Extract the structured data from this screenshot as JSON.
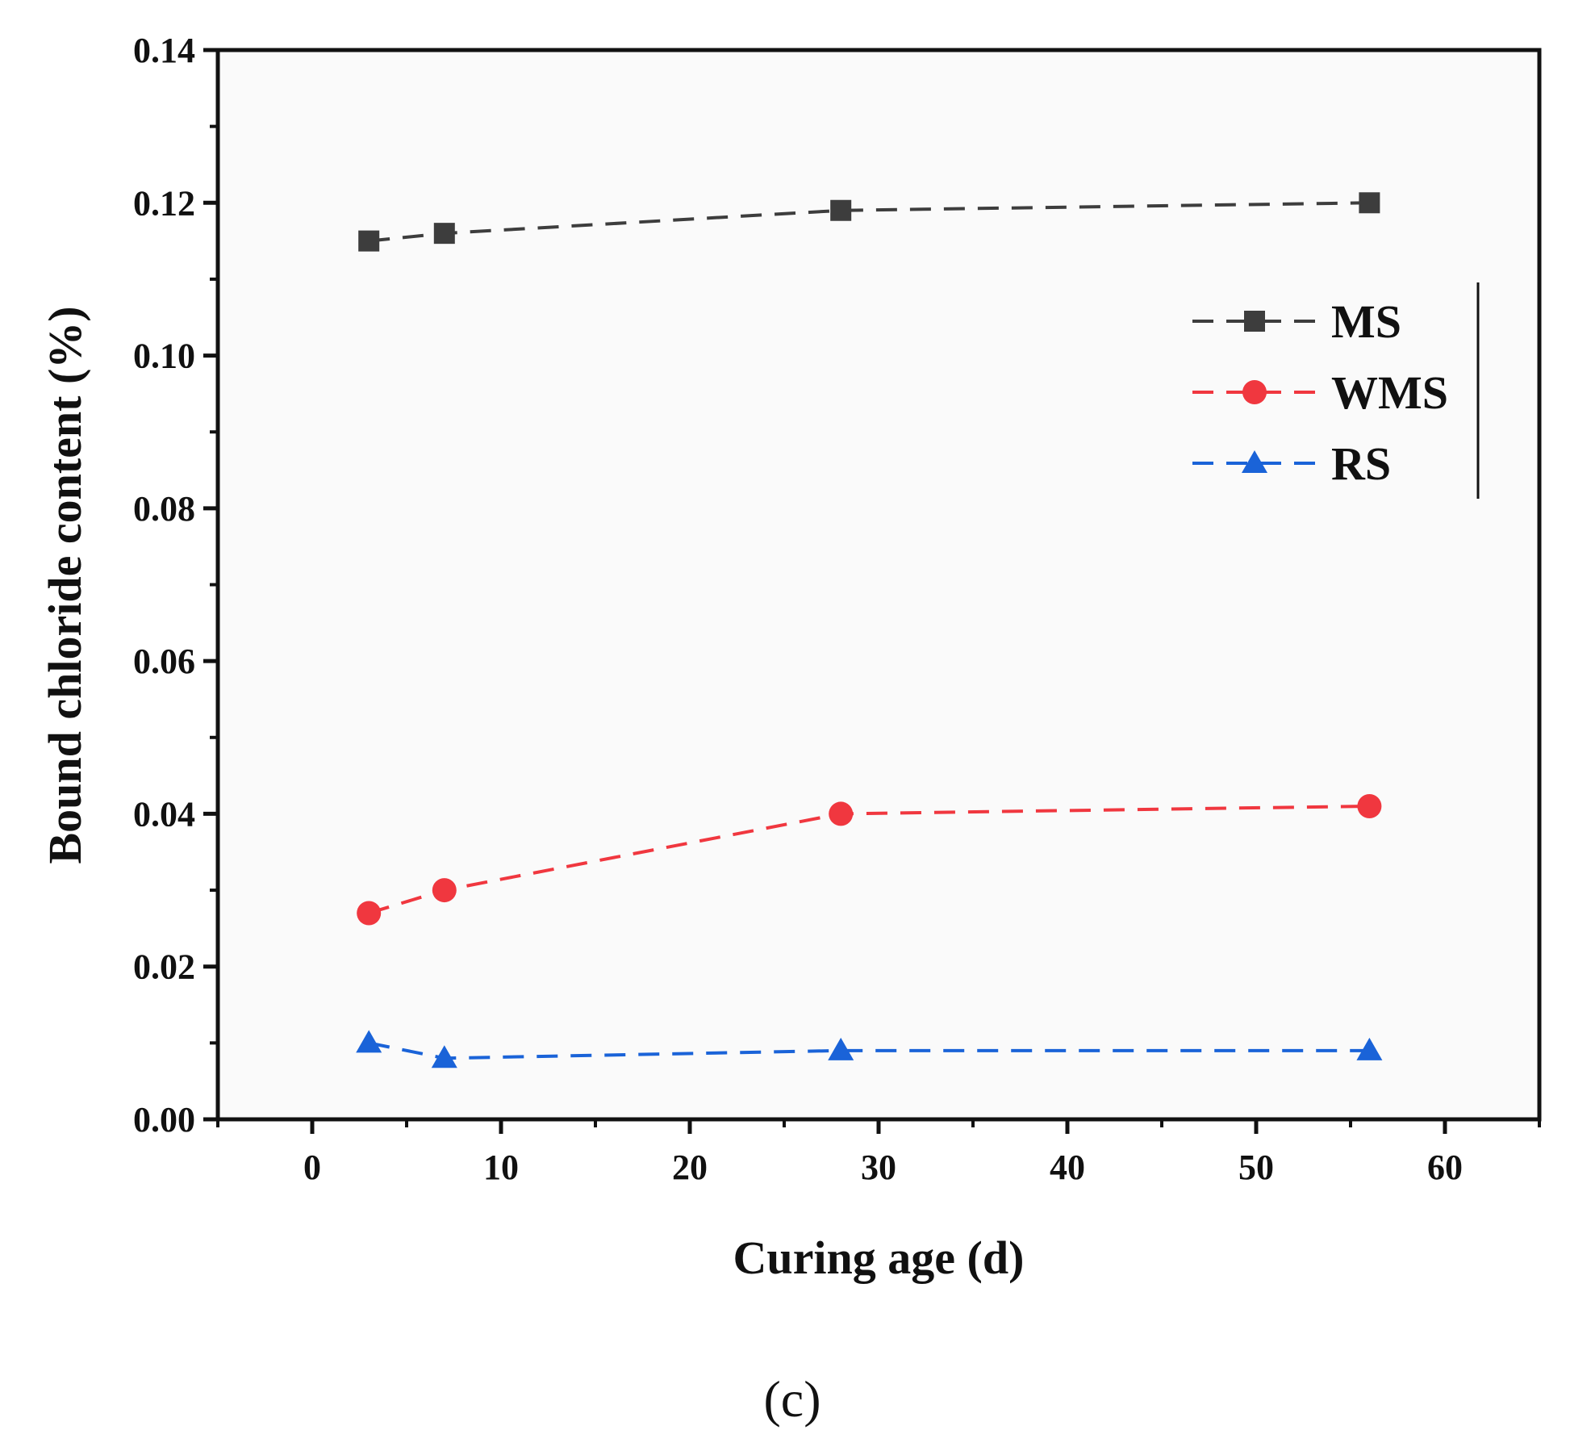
{
  "chart_data": {
    "type": "line",
    "xlabel": "Curing age (d)",
    "ylabel": "Bound chloride content (%)",
    "xlim": [
      -5,
      65
    ],
    "ylim": [
      0,
      0.14
    ],
    "xticks": [
      0,
      10,
      20,
      30,
      40,
      50,
      60
    ],
    "xtick_labels": [
      "0",
      "10",
      "20",
      "30",
      "40",
      "50",
      "60"
    ],
    "yticks": [
      0,
      0.02,
      0.04,
      0.06,
      0.08,
      0.1,
      0.12,
      0.14
    ],
    "ytick_labels": [
      "0.00",
      "0.02",
      "0.04",
      "0.06",
      "0.08",
      "0.10",
      "0.12",
      "0.14"
    ],
    "legend_position": "top-right",
    "grid": false,
    "series": [
      {
        "name": "MS",
        "color": "#3d3d3d",
        "marker": "square",
        "x": [
          3,
          7,
          28,
          56
        ],
        "y": [
          0.115,
          0.116,
          0.119,
          0.12
        ]
      },
      {
        "name": "WMS",
        "color": "#f0373f",
        "marker": "circle",
        "x": [
          3,
          7,
          28,
          56
        ],
        "y": [
          0.027,
          0.03,
          0.04,
          0.041
        ]
      },
      {
        "name": "RS",
        "color": "#1a63d8",
        "marker": "triangle",
        "x": [
          3,
          7,
          28,
          56
        ],
        "y": [
          0.01,
          0.008,
          0.009,
          0.009
        ]
      }
    ]
  },
  "caption": "(c)"
}
